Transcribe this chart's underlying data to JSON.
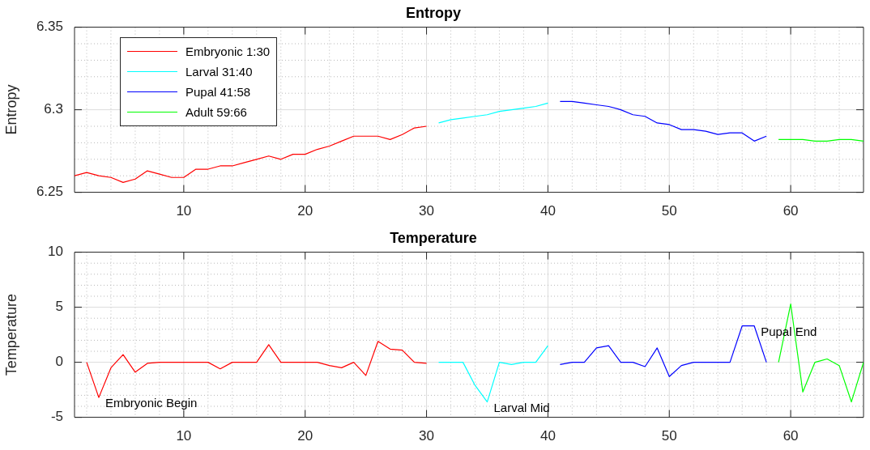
{
  "chart_data": [
    {
      "type": "line",
      "title": "Entropy",
      "ylabel": "Entropy",
      "xlim": [
        1,
        66
      ],
      "ylim": [
        6.25,
        6.35
      ],
      "xticks": [
        {
          "value": 2,
          "label": null
        },
        {
          "value": 4,
          "label": null
        },
        {
          "value": 6,
          "label": null
        },
        {
          "value": 8,
          "label": null
        },
        10,
        {
          "value": 12,
          "label": null
        },
        {
          "value": 14,
          "label": null
        },
        {
          "value": 16,
          "label": null
        },
        {
          "value": 18,
          "label": null
        },
        20,
        {
          "value": 22,
          "label": null
        },
        {
          "value": 24,
          "label": null
        },
        {
          "value": 26,
          "label": null
        },
        {
          "value": 28,
          "label": null
        },
        30,
        {
          "value": 32,
          "label": null
        },
        {
          "value": 34,
          "label": null
        },
        {
          "value": 36,
          "label": null
        },
        {
          "value": 38,
          "label": null
        },
        40,
        {
          "value": 42,
          "label": null
        },
        {
          "value": 44,
          "label": null
        },
        {
          "value": 46,
          "label": null
        },
        {
          "value": 48,
          "label": null
        },
        50,
        {
          "value": 52,
          "label": null
        },
        {
          "value": 54,
          "label": null
        },
        {
          "value": 56,
          "label": null
        },
        {
          "value": 58,
          "label": null
        },
        60,
        {
          "value": 62,
          "label": null
        },
        {
          "value": 64,
          "label": null
        }
      ],
      "yticks": [
        6.25,
        {
          "value": 6.26,
          "label": null
        },
        {
          "value": 6.27,
          "label": null
        },
        {
          "value": 6.28,
          "label": null
        },
        {
          "value": 6.29,
          "label": null
        },
        6.3,
        {
          "value": 6.31,
          "label": null
        },
        {
          "value": 6.32,
          "label": null
        },
        {
          "value": 6.33,
          "label": null
        },
        {
          "value": 6.34,
          "label": null
        },
        6.35
      ],
      "grid": true,
      "legend": "top left",
      "marker": "none",
      "line_style": "solid",
      "series": [
        {
          "name": "Embryonic 1:30",
          "color": "#ff0000",
          "x": [
            1,
            2,
            3,
            4,
            5,
            6,
            7,
            8,
            9,
            10,
            11,
            12,
            13,
            14,
            15,
            16,
            17,
            18,
            19,
            20,
            21,
            22,
            23,
            24,
            25,
            26,
            27,
            28,
            29,
            30
          ],
          "values": [
            6.26,
            6.262,
            6.26,
            6.259,
            6.256,
            6.258,
            6.263,
            6.261,
            6.259,
            6.259,
            6.264,
            6.264,
            6.266,
            6.266,
            6.268,
            6.27,
            6.272,
            6.27,
            6.273,
            6.273,
            6.276,
            6.278,
            6.281,
            6.284,
            6.284,
            6.284,
            6.282,
            6.285,
            6.289,
            6.29
          ]
        },
        {
          "name": "Larval 31:40",
          "color": "#00ffff",
          "x": [
            31,
            32,
            33,
            34,
            35,
            36,
            37,
            38,
            39,
            40
          ],
          "values": [
            6.292,
            6.294,
            6.295,
            6.296,
            6.297,
            6.299,
            6.3,
            6.301,
            6.302,
            6.304
          ]
        },
        {
          "name": "Pupal 41:58",
          "color": "#0000ff",
          "x": [
            41,
            42,
            43,
            44,
            45,
            46,
            47,
            48,
            49,
            50,
            51,
            52,
            53,
            54,
            55,
            56,
            57,
            58
          ],
          "values": [
            6.305,
            6.305,
            6.304,
            6.303,
            6.302,
            6.3,
            6.297,
            6.296,
            6.292,
            6.291,
            6.288,
            6.288,
            6.287,
            6.285,
            6.286,
            6.286,
            6.281,
            6.284
          ]
        },
        {
          "name": "Adult 59:66",
          "color": "#00ff00",
          "x": [
            59,
            60,
            61,
            62,
            63,
            64,
            65,
            66
          ],
          "values": [
            6.282,
            6.282,
            6.282,
            6.281,
            6.281,
            6.282,
            6.282,
            6.281
          ]
        }
      ]
    },
    {
      "type": "line",
      "title": "Temperature",
      "ylabel": "Temperature",
      "xlim": [
        1,
        66
      ],
      "ylim": [
        -5,
        10
      ],
      "xticks": [
        {
          "value": 2,
          "label": null
        },
        {
          "value": 4,
          "label": null
        },
        {
          "value": 6,
          "label": null
        },
        {
          "value": 8,
          "label": null
        },
        10,
        {
          "value": 12,
          "label": null
        },
        {
          "value": 14,
          "label": null
        },
        {
          "value": 16,
          "label": null
        },
        {
          "value": 18,
          "label": null
        },
        20,
        {
          "value": 22,
          "label": null
        },
        {
          "value": 24,
          "label": null
        },
        {
          "value": 26,
          "label": null
        },
        {
          "value": 28,
          "label": null
        },
        30,
        {
          "value": 32,
          "label": null
        },
        {
          "value": 34,
          "label": null
        },
        {
          "value": 36,
          "label": null
        },
        {
          "value": 38,
          "label": null
        },
        40,
        {
          "value": 42,
          "label": null
        },
        {
          "value": 44,
          "label": null
        },
        {
          "value": 46,
          "label": null
        },
        {
          "value": 48,
          "label": null
        },
        50,
        {
          "value": 52,
          "label": null
        },
        {
          "value": 54,
          "label": null
        },
        {
          "value": 56,
          "label": null
        },
        {
          "value": 58,
          "label": null
        },
        60,
        {
          "value": 62,
          "label": null
        },
        {
          "value": 64,
          "label": null
        }
      ],
      "yticks": [
        -5,
        {
          "value": -4,
          "label": null
        },
        {
          "value": -3,
          "label": null
        },
        {
          "value": -2,
          "label": null
        },
        {
          "value": -1,
          "label": null
        },
        0,
        {
          "value": 1,
          "label": null
        },
        {
          "value": 2,
          "label": null
        },
        {
          "value": 3,
          "label": null
        },
        {
          "value": 4,
          "label": null
        },
        5,
        {
          "value": 6,
          "label": null
        },
        {
          "value": 7,
          "label": null
        },
        {
          "value": 8,
          "label": null
        },
        {
          "value": 9,
          "label": null
        },
        10
      ],
      "grid": true,
      "legend": false,
      "marker": "none",
      "line_style": "solid",
      "annotations": [
        {
          "text": "Embryonic Begin",
          "x": 3,
          "y": -3.2
        },
        {
          "text": "Larval Mid",
          "x": 35,
          "y": -3.6
        },
        {
          "text": "Pupal End",
          "x": 57,
          "y": 3.3
        }
      ],
      "series": [
        {
          "color": "#ff0000",
          "x": [
            2,
            3,
            4,
            5,
            6,
            7,
            8,
            9,
            10,
            11,
            12,
            13,
            14,
            15,
            16,
            17,
            18,
            19,
            20,
            21,
            22,
            23,
            24,
            25,
            26,
            27,
            28,
            29,
            30
          ],
          "values": [
            0,
            -3.2,
            -0.5,
            0.7,
            -0.9,
            -0.1,
            0,
            0,
            0,
            0,
            0,
            -0.6,
            0,
            0,
            0,
            1.6,
            0,
            0,
            0,
            0,
            -0.3,
            -0.5,
            0,
            -1.2,
            1.9,
            1.2,
            1.1,
            0,
            -0.1
          ]
        },
        {
          "color": "#00ffff",
          "x": [
            31,
            32,
            33,
            34,
            35,
            36,
            37,
            38,
            39,
            40
          ],
          "values": [
            0,
            0,
            0,
            -2.1,
            -3.6,
            0,
            -0.2,
            0,
            0,
            1.5
          ]
        },
        {
          "color": "#0000ff",
          "x": [
            41,
            42,
            43,
            44,
            45,
            46,
            47,
            48,
            49,
            50,
            51,
            52,
            53,
            54,
            55,
            56,
            57,
            58
          ],
          "values": [
            -0.2,
            0,
            0,
            1.3,
            1.5,
            0,
            0,
            -0.4,
            1.3,
            -1.3,
            -0.3,
            0,
            0,
            0,
            0,
            3.3,
            3.3,
            0
          ]
        },
        {
          "color": "#00ff00",
          "x": [
            59,
            60,
            61,
            62,
            63,
            64,
            65,
            66
          ],
          "values": [
            0,
            5.3,
            -2.7,
            0,
            0.3,
            -0.3,
            -3.6,
            0
          ]
        }
      ]
    }
  ]
}
